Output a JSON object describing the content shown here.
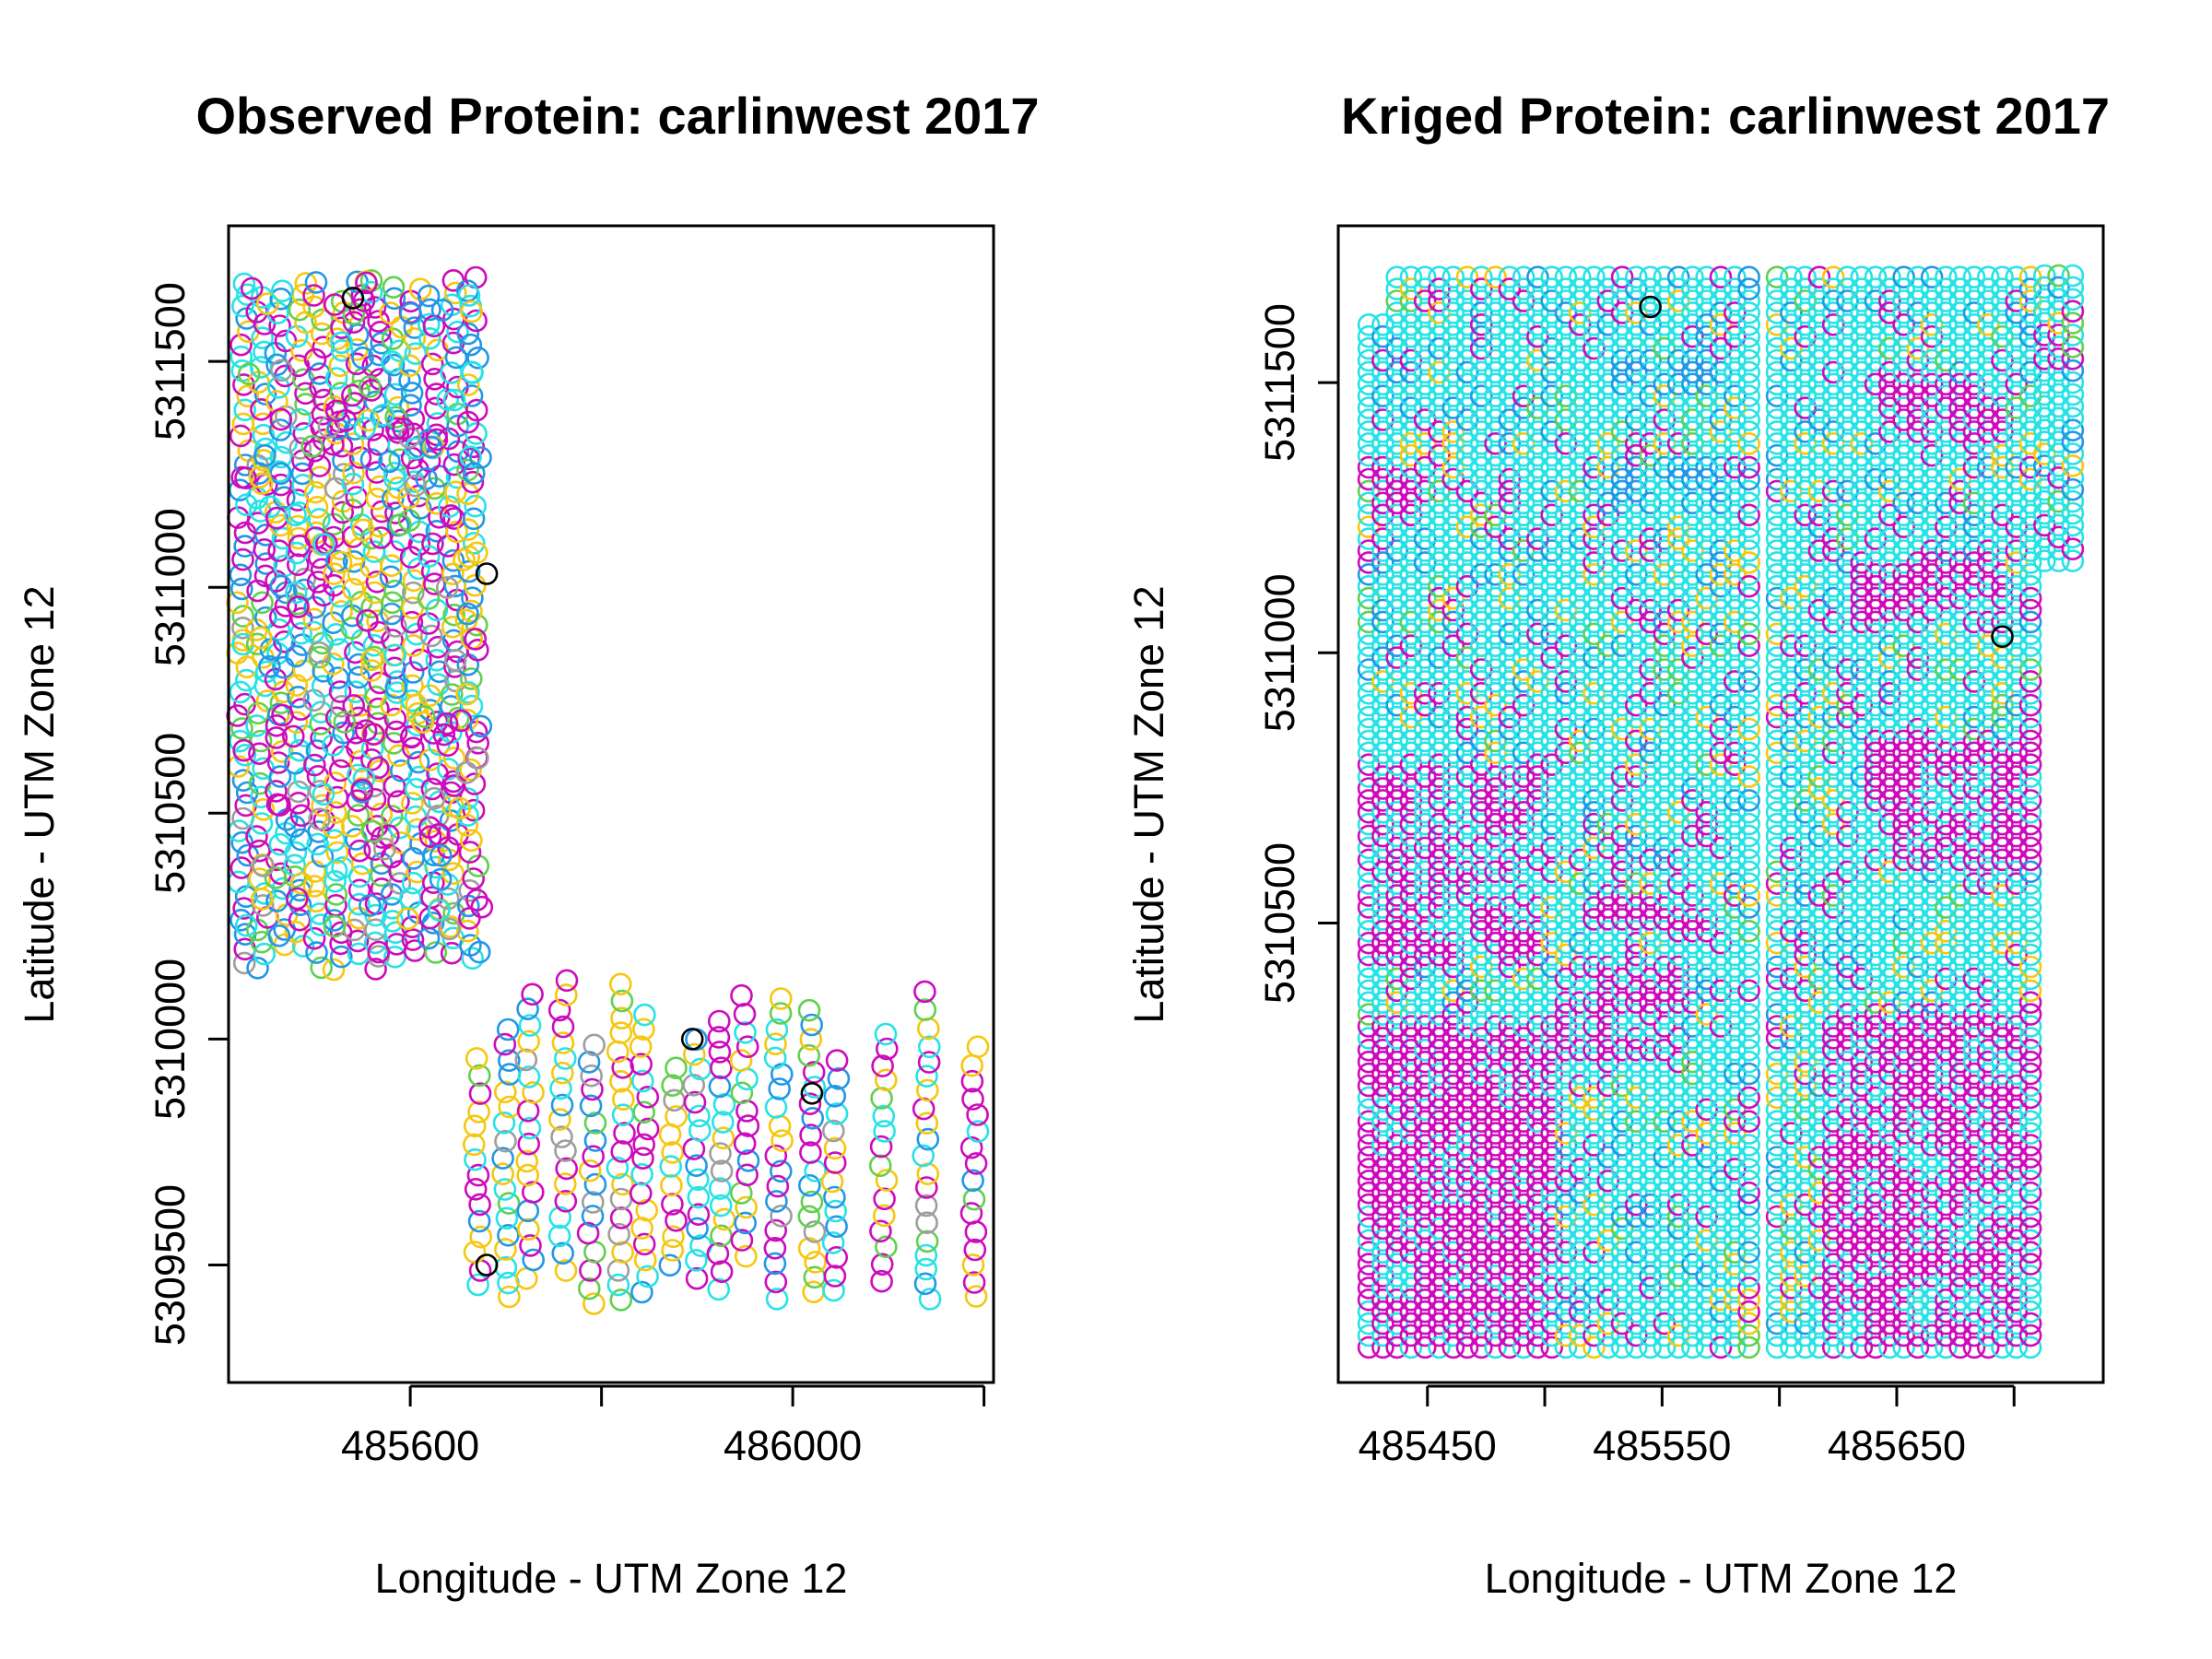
{
  "colors": {
    "magenta": "#CD0BBC",
    "cyan": "#28E2E5",
    "blue": "#2297E6",
    "orange": "#F5C710",
    "green": "#61D04F",
    "gray": "#9E9E9E",
    "black": "#000000"
  },
  "chart_data": [
    {
      "type": "scatter",
      "title": "Observed Protein: carlinwest 2017",
      "xlabel": "Longitude - UTM Zone 12",
      "ylabel": "Latitude - UTM Zone 12",
      "xlim": [
        485410,
        486210
      ],
      "ylim": [
        5309240,
        5311800
      ],
      "xticks": [
        485600,
        485800,
        486000,
        486200
      ],
      "xtick_labels": [
        "485600",
        "",
        "486000",
        ""
      ],
      "yticks": [
        5309500,
        5310000,
        5310500,
        5311000,
        5311500
      ],
      "ytick_labels": [
        "5309500",
        "5310000",
        "5310500",
        "5311000",
        "5311500"
      ],
      "marker": "open-circle",
      "color_scheme": [
        "magenta",
        "cyan",
        "blue",
        "orange",
        "green",
        "gray",
        "black"
      ],
      "description_of_points": "dense block of multicolored points from x≈485420 to 485680, y≈5310140 to 5311720; sparse vertical transects from x≈485670 to 486190, y≈5309420 to 5310140"
    },
    {
      "type": "scatter",
      "title": "Kriged Protein: carlinwest 2017",
      "xlabel": "Longitude - UTM Zone 12",
      "ylabel": "Latitude - UTM Zone 12",
      "xlim": [
        485412,
        485738
      ],
      "ylim": [
        5309650,
        5311790
      ],
      "xticks": [
        485450,
        485500,
        485550,
        485600,
        485650,
        485700
      ],
      "xtick_labels": [
        "485450",
        "",
        "485550",
        "",
        "485650",
        ""
      ],
      "yticks": [
        5310500,
        5311000,
        5311500
      ],
      "ytick_labels": [
        "5310500",
        "5311000",
        "5311500"
      ],
      "marker": "open-circle",
      "color_scheme": [
        "cyan",
        "magenta",
        "blue",
        "orange",
        "green",
        "black"
      ],
      "description_of_points": "dense grid of predicted points x≈485425 to 485725, y≈5309710 to 5311715; mostly cyan, magenta bands in lower region (y<5310800) and around y≈5311100 and y≈5311450 on right side, blue cluster near x≈485550, y≈5311300-5311550"
    }
  ]
}
